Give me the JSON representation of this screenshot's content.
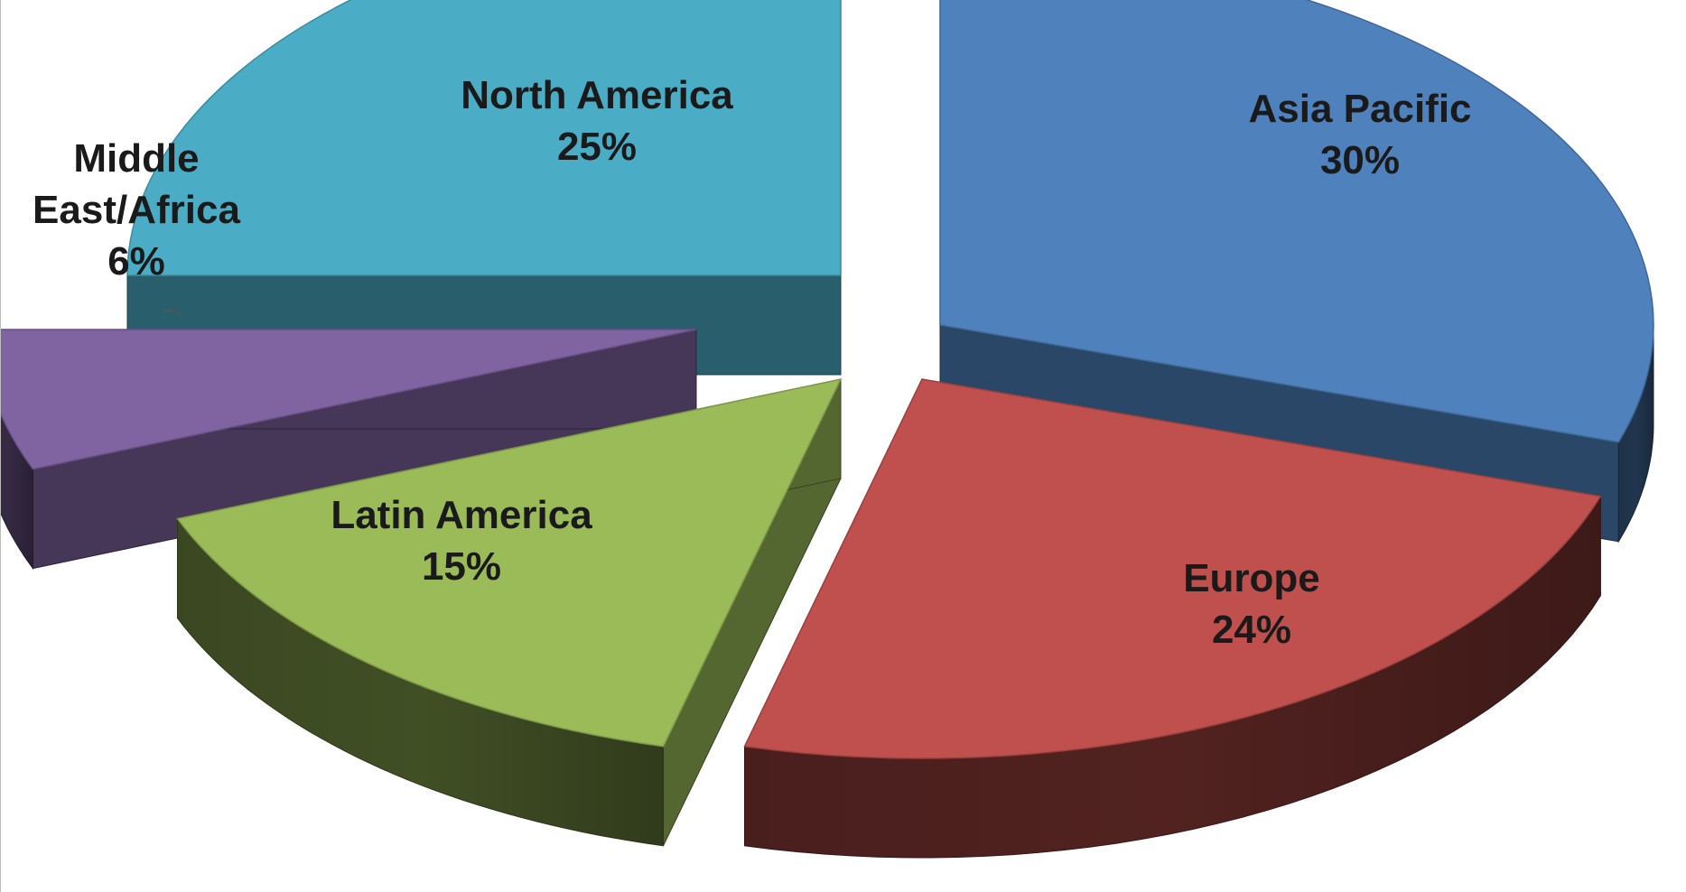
{
  "chart_data": {
    "type": "pie",
    "title": "",
    "style": "3d-exploded",
    "legend": "none",
    "slices": [
      {
        "label": "Asia Pacific",
        "value": 30,
        "value_label": "30%",
        "color": "#4F81BD"
      },
      {
        "label": "Europe",
        "value": 24,
        "value_label": "24%",
        "color": "#C0504D"
      },
      {
        "label": "Latin America",
        "value": 15,
        "value_label": "15%",
        "color": "#9BBB59"
      },
      {
        "label": "Middle East/Africa",
        "label_lines": [
          "Middle",
          "East/Africa"
        ],
        "value": 6,
        "value_label": "6%",
        "color": "#8064A2"
      },
      {
        "label": "North America",
        "value": 25,
        "value_label": "25%",
        "color": "#4BACC6"
      }
    ]
  }
}
